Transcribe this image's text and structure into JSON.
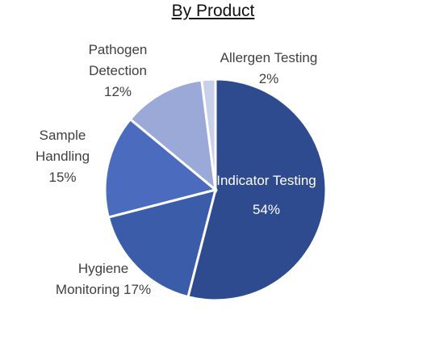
{
  "chart_data": {
    "type": "pie",
    "title": "By Product",
    "categories": [
      "Indicator Testing",
      "Hygiene Monitoring",
      "Sample Handling",
      "Pathogen Detection",
      "Allergen Testing"
    ],
    "values": [
      54,
      17,
      15,
      12,
      2
    ],
    "value_labels": [
      "54%",
      "17%",
      "15%",
      "12%",
      "2%"
    ],
    "colors": [
      "#2f4b8f",
      "#3a5ca9",
      "#4a6bbe",
      "#9ba9d9",
      "#c9d0ea"
    ]
  }
}
